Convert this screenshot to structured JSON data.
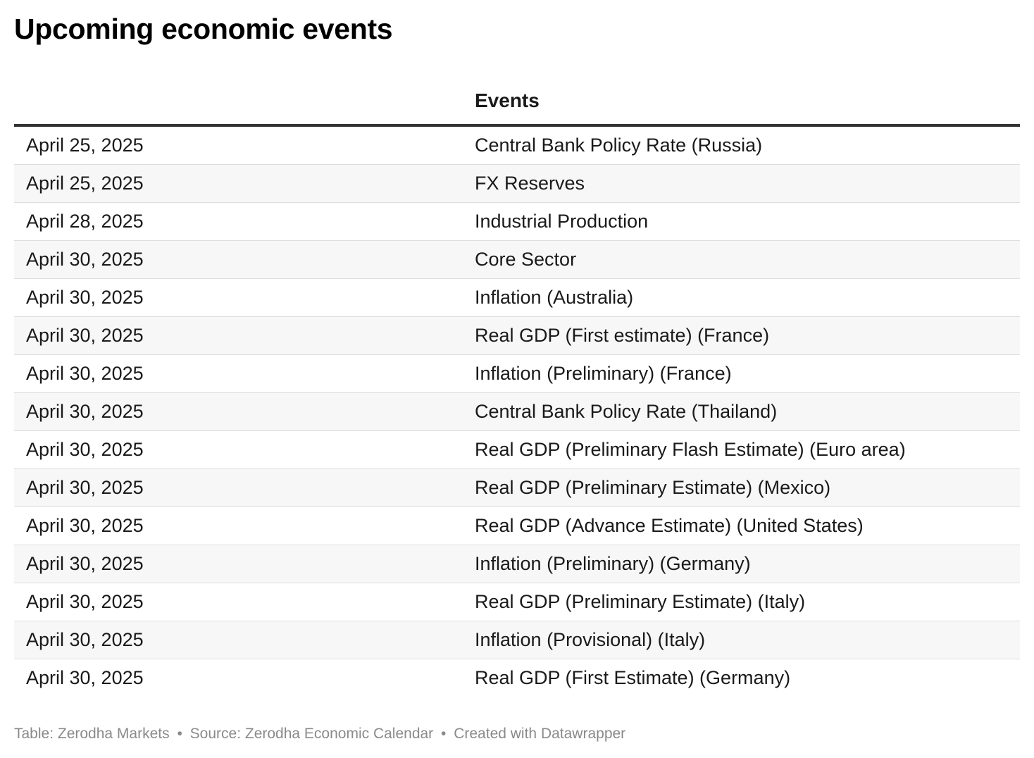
{
  "title": "Upcoming economic events",
  "table": {
    "columns": [
      "",
      "Events"
    ],
    "rows": [
      {
        "date": "April 25, 2025",
        "event": "Central Bank Policy Rate (Russia)"
      },
      {
        "date": "April 25, 2025",
        "event": "FX Reserves"
      },
      {
        "date": "April 28, 2025",
        "event": "Industrial Production"
      },
      {
        "date": "April 30, 2025",
        "event": "Core Sector"
      },
      {
        "date": "April 30, 2025",
        "event": "Inflation (Australia)"
      },
      {
        "date": "April 30, 2025",
        "event": "Real GDP (First estimate) (France)"
      },
      {
        "date": "April 30, 2025",
        "event": "Inflation (Preliminary) (France)"
      },
      {
        "date": "April 30, 2025",
        "event": "Central Bank Policy Rate (Thailand)"
      },
      {
        "date": "April 30, 2025",
        "event": "Real GDP (Preliminary Flash Estimate) (Euro area)"
      },
      {
        "date": "April 30, 2025",
        "event": "Real GDP (Preliminary Estimate) (Mexico)"
      },
      {
        "date": "April 30, 2025",
        "event": "Real GDP (Advance Estimate) (United States)"
      },
      {
        "date": "April 30, 2025",
        "event": "Inflation (Preliminary) (Germany)"
      },
      {
        "date": "April 30, 2025",
        "event": "Real GDP (Preliminary Estimate) (Italy)"
      },
      {
        "date": "April 30, 2025",
        "event": "Inflation (Provisional) (Italy)"
      },
      {
        "date": "April 30, 2025",
        "event": "Real GDP (First Estimate) (Germany)"
      }
    ]
  },
  "footer": {
    "table_credit": "Table: Zerodha Markets",
    "source": "Source: Zerodha Economic Calendar",
    "created_with": "Created with Datawrapper",
    "separator": "•"
  },
  "colors": {
    "text": "#1a1a1a",
    "header_rule": "#333333",
    "row_divider": "#dddddd",
    "zebra_row": "#f7f7f7",
    "footer_text": "#8a8a8a"
  }
}
